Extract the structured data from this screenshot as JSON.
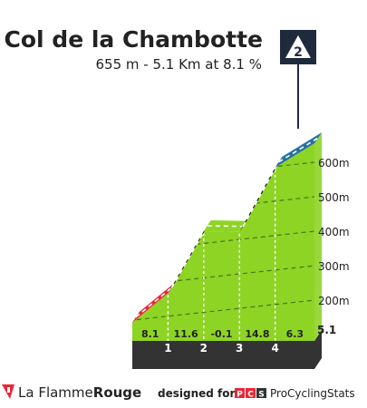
{
  "chart_data": {
    "type": "area",
    "title": "Col de la Chambotte",
    "subtitle": "655 m - 5.1 Km at 8.1 %",
    "category_badge": "2",
    "y_ticks": [
      "200m",
      "300m",
      "400m",
      "500m",
      "600m"
    ],
    "y_tick_values": [
      200,
      300,
      400,
      500,
      600
    ],
    "ylim": [
      100,
      655
    ],
    "xlim": [
      0,
      5.1
    ],
    "total_distance_label": "5.1",
    "km_markers": [
      "1",
      "2",
      "3",
      "4"
    ],
    "segments": [
      {
        "km_start": 0,
        "km_end": 1,
        "gradient": 8.1,
        "gradient_label": "8.1",
        "elev_start": 135,
        "elev_end": 220,
        "color": "#e8273a"
      },
      {
        "km_start": 1,
        "km_end": 2,
        "gradient": 11.6,
        "gradient_label": "11.6",
        "elev_start": 220,
        "elev_end": 400,
        "color": "#222222"
      },
      {
        "km_start": 2,
        "km_end": 3,
        "gradient": -0.1,
        "gradient_label": "-0.1",
        "elev_start": 400,
        "elev_end": 398,
        "color": "#8ed424"
      },
      {
        "km_start": 3,
        "km_end": 4,
        "gradient": 14.8,
        "gradient_label": "14.8",
        "elev_start": 398,
        "elev_end": 585,
        "color": "#222222"
      },
      {
        "km_start": 4,
        "km_end": 5.1,
        "gradient": 6.3,
        "gradient_label": "6.3",
        "elev_start": 585,
        "elev_end": 655,
        "color": "#2471a3"
      }
    ]
  },
  "footer": {
    "brand_la": "La Flamme",
    "brand_rouge": "Rouge",
    "designed_for": "designed for",
    "pcs_letters": [
      "P",
      "C",
      "S"
    ],
    "pcs_name": "ProCyclingStats"
  },
  "colors": {
    "fill_green": "#8ed424",
    "wall_gray": "#b9aa98",
    "base_dark": "#333333",
    "pcs_red": "#e8273a"
  }
}
